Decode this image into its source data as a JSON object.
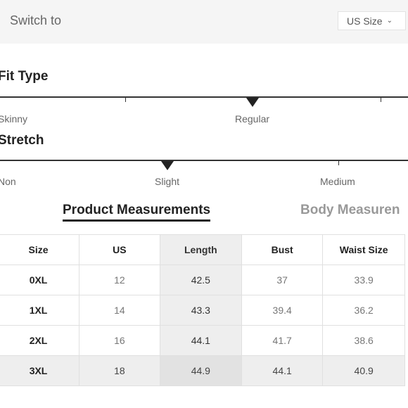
{
  "header": {
    "switch_label": "Switch to",
    "size_select": {
      "value": "US Size"
    }
  },
  "fit_type": {
    "title": "Fit Type",
    "labels": [
      "Skinny",
      "Regular"
    ],
    "selected": "Regular"
  },
  "stretch": {
    "title": "Stretch",
    "labels": [
      "Non",
      "Slight",
      "Medium"
    ],
    "selected": "Slight"
  },
  "tabs": [
    {
      "label": "Product Measurements",
      "active": true
    },
    {
      "label": "Body Measuren",
      "active": false
    }
  ],
  "table": {
    "headers": [
      "Size",
      "US",
      "Length",
      "Bust",
      "Waist Size"
    ],
    "rows": [
      {
        "size": "0XL",
        "us": "12",
        "length": "42.5",
        "bust": "37",
        "waist": "33.9"
      },
      {
        "size": "1XL",
        "us": "14",
        "length": "43.3",
        "bust": "39.4",
        "waist": "36.2"
      },
      {
        "size": "2XL",
        "us": "16",
        "length": "44.1",
        "bust": "41.7",
        "waist": "38.6"
      },
      {
        "size": "3XL",
        "us": "18",
        "length": "44.9",
        "bust": "44.1",
        "waist": "40.9"
      }
    ],
    "highlight_column": "Length",
    "highlight_row": "3XL"
  }
}
